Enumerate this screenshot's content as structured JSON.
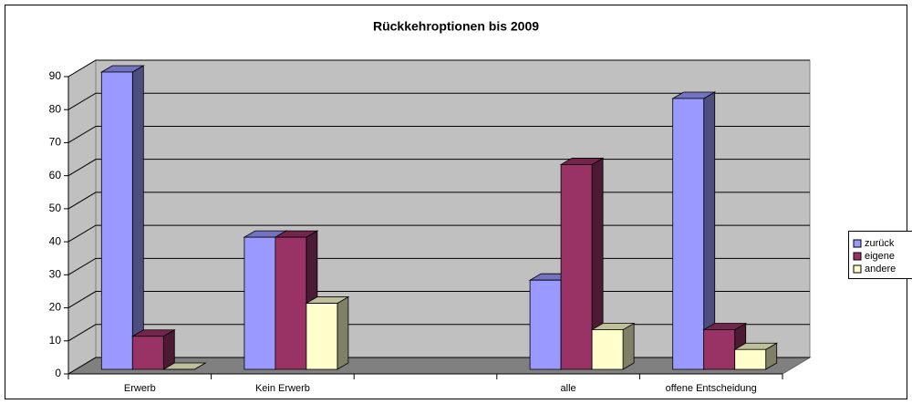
{
  "chart_data": {
    "type": "bar3d",
    "title": "Rückkehroptionen bis 2009",
    "categories": [
      "Erwerb",
      "Kein Erwerb",
      null,
      "alle",
      "offene Entscheidung"
    ],
    "series": [
      {
        "name": "zurück",
        "color": "#9999ff",
        "values": [
          90,
          40,
          null,
          27,
          82
        ]
      },
      {
        "name": "eigene",
        "color": "#993366",
        "values": [
          10,
          40,
          null,
          62,
          12
        ]
      },
      {
        "name": "andere",
        "color": "#ffffcc",
        "values": [
          0,
          20,
          null,
          12,
          6
        ]
      }
    ],
    "ylim": [
      0,
      90
    ],
    "yticks": [
      0,
      10,
      20,
      30,
      40,
      50,
      60,
      70,
      80,
      90
    ],
    "grid": true,
    "legend": "right"
  }
}
